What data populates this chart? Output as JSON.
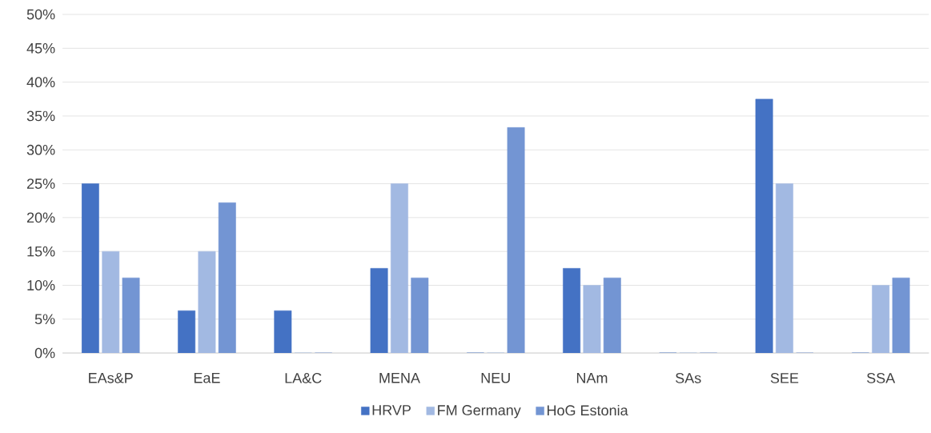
{
  "chart_data": {
    "type": "bar",
    "categories": [
      "EAs&P",
      "EaE",
      "LA&C",
      "MENA",
      "NEU",
      "NAm",
      "SAs",
      "SEE",
      "SSA"
    ],
    "series": [
      {
        "name": "HRVP",
        "color": "#4472c4",
        "values": [
          25,
          6.25,
          6.25,
          12.5,
          0,
          12.5,
          0,
          37.5,
          0
        ]
      },
      {
        "name": "FM Germany",
        "color": "#a2b9e2",
        "values": [
          15,
          15,
          0,
          25,
          0,
          10,
          0,
          25,
          10
        ]
      },
      {
        "name": "HoG Estonia",
        "color": "#7395d3",
        "values": [
          11.1,
          22.2,
          0,
          11.1,
          33.3,
          11.1,
          0,
          0,
          11.1
        ]
      }
    ],
    "ylim": [
      0,
      50
    ],
    "yticks": [
      {
        "value": 0,
        "label": "0%"
      },
      {
        "value": 5,
        "label": "5%"
      },
      {
        "value": 10,
        "label": "10%"
      },
      {
        "value": 15,
        "label": "15%"
      },
      {
        "value": 20,
        "label": "20%"
      },
      {
        "value": 25,
        "label": "25%"
      },
      {
        "value": 30,
        "label": "30%"
      },
      {
        "value": 35,
        "label": "35%"
      },
      {
        "value": 40,
        "label": "40%"
      },
      {
        "value": 45,
        "label": "45%"
      },
      {
        "value": 50,
        "label": "50%"
      }
    ],
    "grid": "y",
    "legend": "bottom"
  }
}
